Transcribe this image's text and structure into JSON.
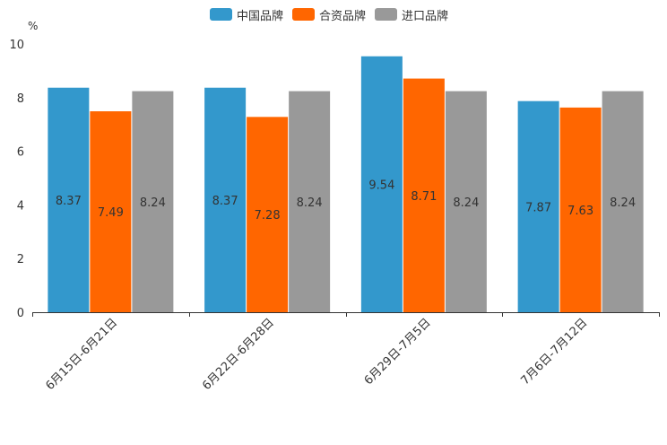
{
  "chart_data": {
    "type": "bar",
    "title": "",
    "ylabel": "%",
    "xlabel": "",
    "ylim": [
      0,
      10
    ],
    "yticks": [
      0,
      2,
      4,
      6,
      8,
      10
    ],
    "categories": [
      "6月15日-6月21日",
      "6月22日-6月28日",
      "6月29日-7月5日",
      "7月6日-7月12日"
    ],
    "series": [
      {
        "name": "中国品牌",
        "color": "#3398cc",
        "values": [
          8.37,
          8.37,
          9.54,
          7.87
        ]
      },
      {
        "name": "合资品牌",
        "color": "#ff6600",
        "values": [
          7.49,
          7.28,
          8.71,
          7.63
        ]
      },
      {
        "name": "进口品牌",
        "color": "#999999",
        "values": [
          8.24,
          8.24,
          8.24,
          8.24
        ]
      }
    ],
    "legend_position": "top-center",
    "grid": false
  }
}
